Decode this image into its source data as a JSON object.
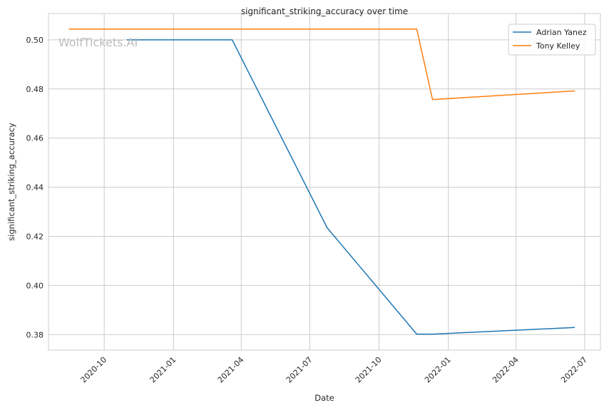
{
  "watermark": "WolfTickets.AI",
  "chart_data": {
    "type": "line",
    "title": "significant_striking_accuracy over time",
    "xlabel": "Date",
    "ylabel": "significant_striking_accuracy",
    "x_ticks": [
      "2020-10",
      "2021-01",
      "2021-04",
      "2021-07",
      "2021-10",
      "2022-01",
      "2022-04",
      "2022-07"
    ],
    "y_ticks": [
      "0.38",
      "0.40",
      "0.42",
      "0.44",
      "0.46",
      "0.48",
      "0.50"
    ],
    "xlim": [
      "2020-07-19",
      "2022-07-22"
    ],
    "ylim": [
      0.3737,
      0.5107
    ],
    "grid": true,
    "legend_position": "top-right",
    "series": [
      {
        "name": "Adrian Yanez",
        "color": "#1f77b4",
        "points": [
          {
            "date": "2020-10-31",
            "value": 0.5
          },
          {
            "date": "2021-03-20",
            "value": 0.5
          },
          {
            "date": "2021-07-24",
            "value": 0.4235
          },
          {
            "date": "2021-11-20",
            "value": 0.3802
          },
          {
            "date": "2021-12-11",
            "value": 0.3802
          },
          {
            "date": "2022-06-18",
            "value": 0.3829
          }
        ]
      },
      {
        "name": "Tony Kelley",
        "color": "#ff7f0e",
        "points": [
          {
            "date": "2020-08-15",
            "value": 0.5044
          },
          {
            "date": "2021-11-20",
            "value": 0.5044
          },
          {
            "date": "2021-12-11",
            "value": 0.4757
          },
          {
            "date": "2022-06-18",
            "value": 0.4792
          }
        ]
      }
    ]
  }
}
